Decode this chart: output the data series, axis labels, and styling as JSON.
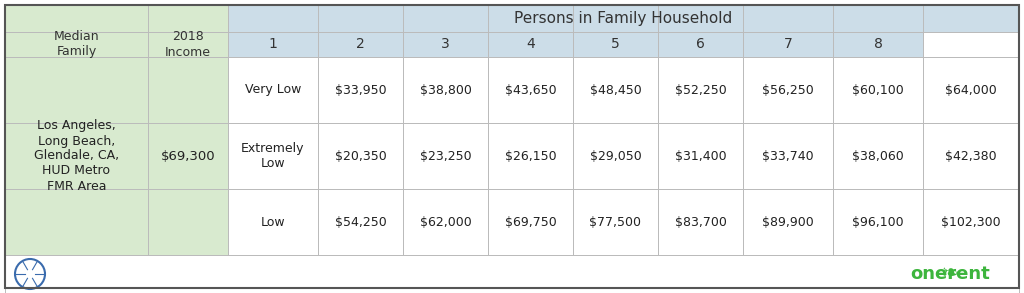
{
  "title_row": "Persons in Family Household",
  "col_headers_left": [
    "Median\nFamily",
    "2018\nIncome"
  ],
  "col_headers_nums": [
    "1",
    "2",
    "3",
    "4",
    "5",
    "6",
    "7",
    "8"
  ],
  "row_label": "Los Angeles,\nLong Beach,\nGlendale, CA,\nHUD Metro\nFMR Area",
  "median_income": "$69,300",
  "rows": [
    {
      "label": "Very Low",
      "values": [
        "$33,950",
        "$38,800",
        "$43,650",
        "$48,450",
        "$52,250",
        "$56,250",
        "$60,100",
        "$64,000"
      ]
    },
    {
      "label": "Extremely\nLow",
      "values": [
        "$20,350",
        "$23,250",
        "$26,150",
        "$29,050",
        "$31,400",
        "$33,740",
        "$38,060",
        "$42,380"
      ]
    },
    {
      "label": "Low",
      "values": [
        "$54,250",
        "$62,000",
        "$69,750",
        "$77,500",
        "$83,700",
        "$89,900",
        "$96,100",
        "$102,300"
      ]
    }
  ],
  "color_header_bg": "#ccdde8",
  "color_left_bg": "#d8eacf",
  "color_white": "#ffffff",
  "color_footer_bg": "#ffffff",
  "color_outer_border": "#555555",
  "color_inner_border": "#bbbbbb",
  "color_onerent": "#3db53d",
  "color_text_main": "#222222",
  "color_text_header": "#333333",
  "figw": 10.24,
  "figh": 2.93,
  "dpi": 100
}
